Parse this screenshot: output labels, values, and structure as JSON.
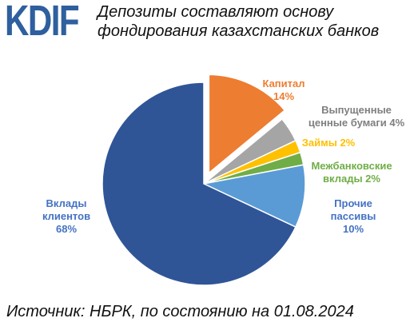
{
  "logo": {
    "text": "KDIF",
    "color": "#2f5f9e"
  },
  "title_lines": [
    "Депозиты составляют основу",
    "фондирования казахстанских банков"
  ],
  "source": "Источник: НБРК, по состоянию на 01.08.2024",
  "chart_data": {
    "type": "pie",
    "title": "Депозиты составляют основу фондирования казахстанских банков",
    "slices": [
      {
        "label_lines": [
          "Капитал",
          "14%"
        ],
        "value": 14,
        "color": "#ed7d31",
        "exploded": true
      },
      {
        "label_lines": [
          "Выпущенные",
          "ценные бумаги 4%"
        ],
        "value": 4,
        "color": "#a5a5a5",
        "exploded": false
      },
      {
        "label_lines": [
          "Займы  2%"
        ],
        "value": 2,
        "color": "#ffc000",
        "exploded": false
      },
      {
        "label_lines": [
          "Межбанковские",
          "вклады 2%"
        ],
        "value": 2,
        "color": "#70ad47",
        "exploded": false
      },
      {
        "label_lines": [
          "Прочие",
          "пассивы",
          "10%"
        ],
        "value": 10,
        "color": "#5b9bd5",
        "exploded": false
      },
      {
        "label_lines": [
          "Вклады",
          "клиентов",
          "68%"
        ],
        "value": 68,
        "color": "#2f5597",
        "exploded": false
      }
    ]
  }
}
